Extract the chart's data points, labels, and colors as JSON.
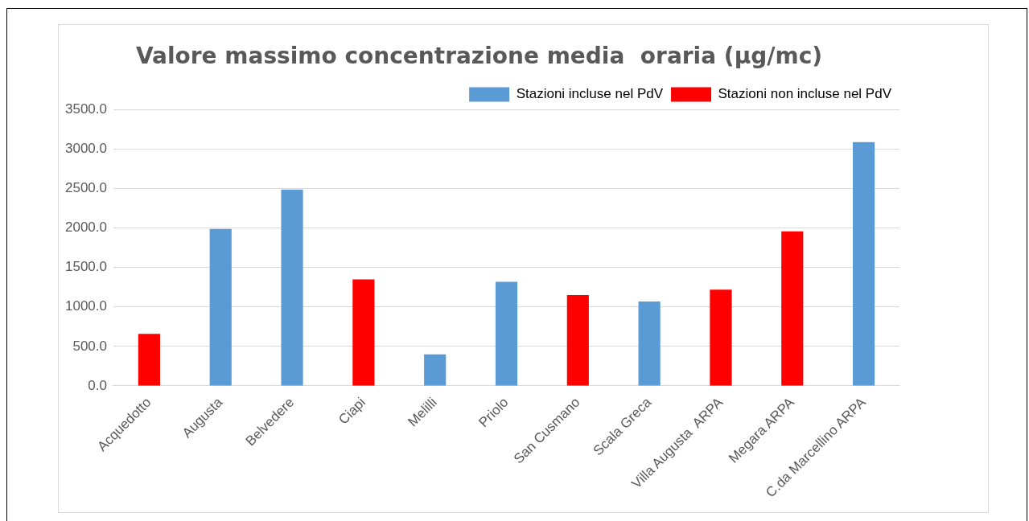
{
  "chart_data": {
    "type": "bar",
    "title": "Valore massimo concentrazione media  oraria (µg/mc)",
    "categories": [
      "Acquedotto",
      "Augusta",
      "Belvedere",
      "Ciapi",
      "Melilli",
      "Priolo",
      "San Cusmano",
      "Scala Greca",
      "Villa Augusta  ARPA",
      "Megara ARPA",
      "C.da Marcellino ARPA"
    ],
    "series": [
      {
        "name": "Stazioni incluse nel PdV",
        "color": "#5b9bd5",
        "values": [
          null,
          1990,
          2490,
          null,
          400,
          1320,
          null,
          1070,
          null,
          null,
          3090
        ]
      },
      {
        "name": "Stazioni non incluse nel PdV",
        "color": "#ff0000",
        "values": [
          660,
          null,
          null,
          1350,
          null,
          null,
          1150,
          null,
          1220,
          1960,
          null
        ]
      }
    ],
    "ylim": [
      0,
      3500
    ],
    "yticks": [
      {
        "value": 0,
        "label": "0.0"
      },
      {
        "value": 500,
        "label": "500.0"
      },
      {
        "value": 1000,
        "label": "1000.0"
      },
      {
        "value": 1500,
        "label": "1500.0"
      },
      {
        "value": 2000,
        "label": "2000.0"
      },
      {
        "value": 2500,
        "label": "2500.0"
      },
      {
        "value": 3000,
        "label": "3000.0"
      },
      {
        "value": 3500,
        "label": "3500.0"
      }
    ],
    "grid": "y",
    "legend": "top right"
  }
}
